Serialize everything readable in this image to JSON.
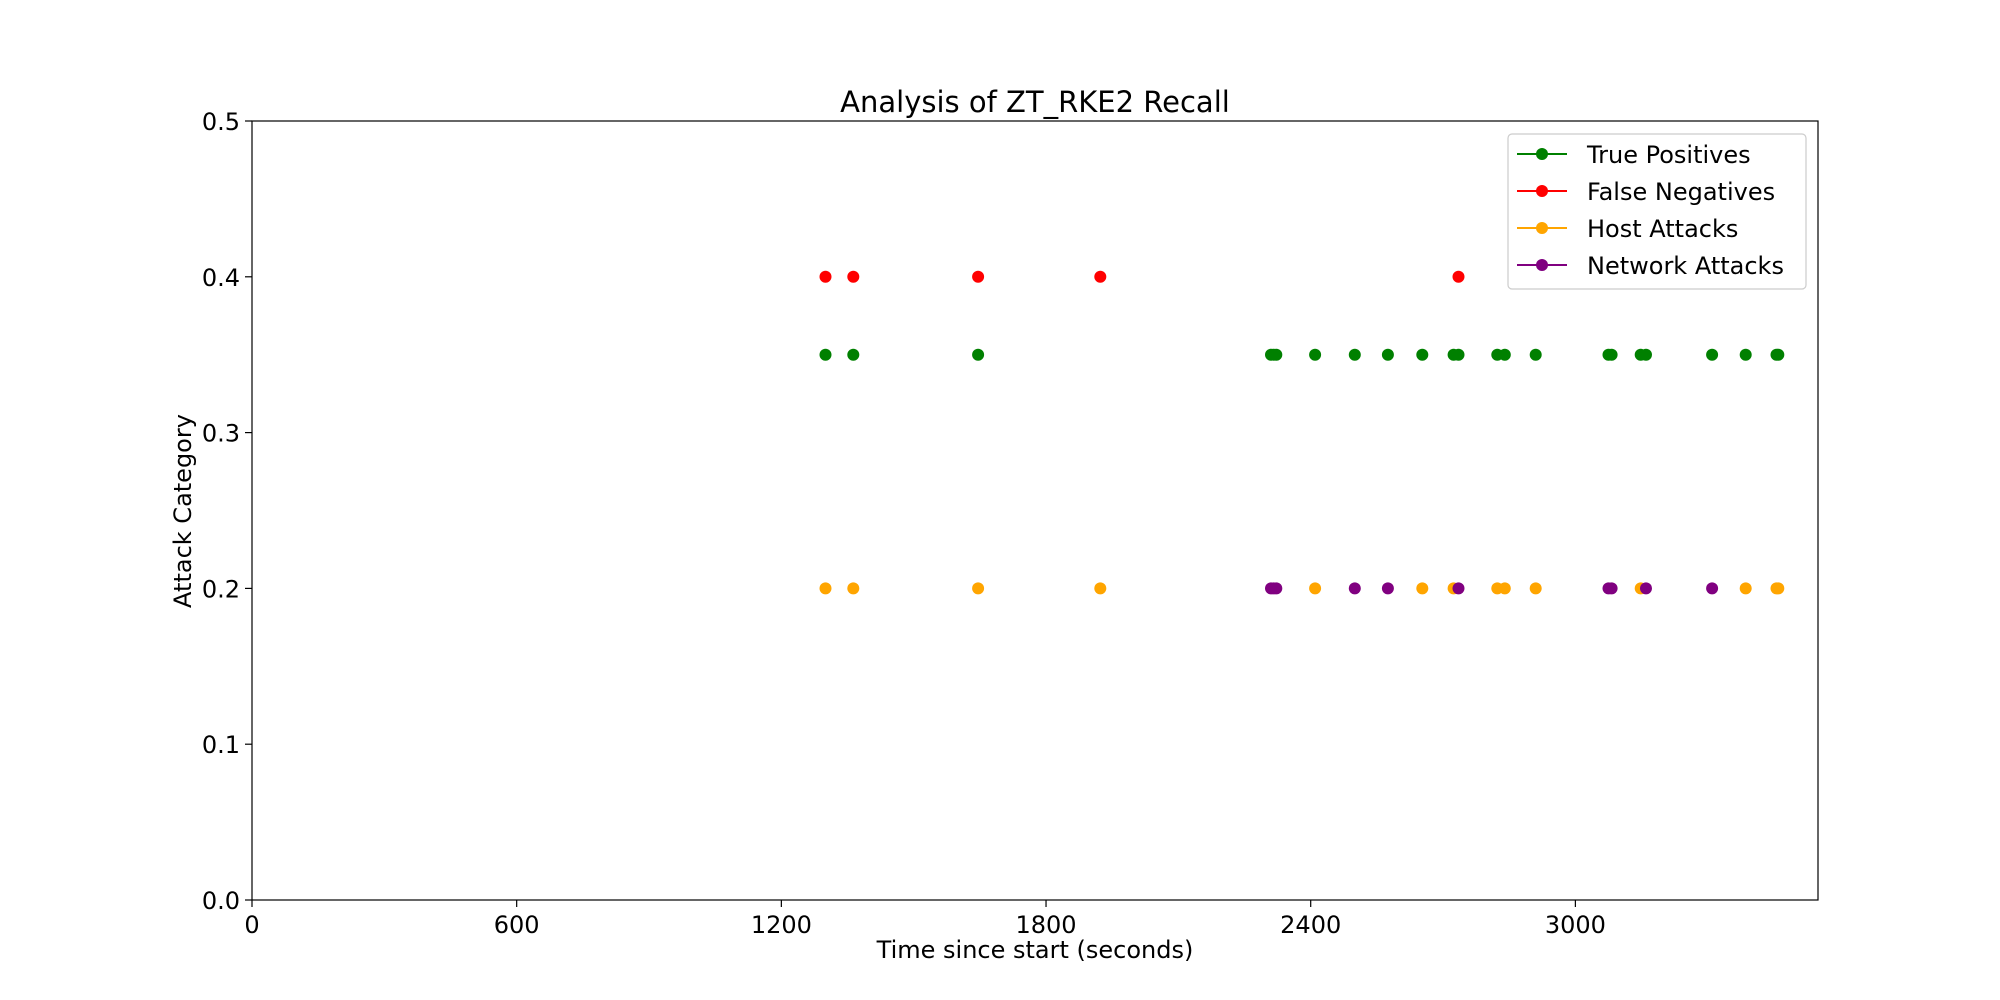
{
  "chart_data": {
    "type": "scatter",
    "title": "Analysis of ZT_RKE2 Recall",
    "xlabel": "Time since start (seconds)",
    "ylabel": "Attack Category",
    "xlim": [
      0,
      3550
    ],
    "ylim": [
      0,
      0.5
    ],
    "xticks": [
      0,
      600,
      1200,
      1800,
      2400,
      3000
    ],
    "xtick_labels": [
      "0",
      "600",
      "1200",
      "1800",
      "2400",
      "3000"
    ],
    "yticks": [
      0.0,
      0.1,
      0.2,
      0.3,
      0.4,
      0.5
    ],
    "ytick_labels": [
      "0.0",
      "0.1",
      "0.2",
      "0.3",
      "0.4",
      "0.5"
    ],
    "grid": false,
    "legend_position": "top-right",
    "series": [
      {
        "name": "True Positives",
        "color": "#008000",
        "x": [
          1300,
          1363,
          1646,
          2310,
          2316,
          2322,
          2410,
          2500,
          2575,
          2653,
          2724,
          2735,
          2823,
          2840,
          2910,
          3075,
          3082,
          3148,
          3160,
          3310,
          3386,
          3456,
          3460
        ],
        "y": [
          0.35,
          0.35,
          0.35,
          0.35,
          0.35,
          0.35,
          0.35,
          0.35,
          0.35,
          0.35,
          0.35,
          0.35,
          0.35,
          0.35,
          0.35,
          0.35,
          0.35,
          0.35,
          0.35,
          0.35,
          0.35,
          0.35,
          0.35
        ]
      },
      {
        "name": "False Negatives",
        "color": "#ff0000",
        "x": [
          1300,
          1363,
          1646,
          1923,
          2735
        ],
        "y": [
          0.4,
          0.4,
          0.4,
          0.4,
          0.4
        ]
      },
      {
        "name": "Host Attacks",
        "color": "#ffa500",
        "x": [
          1300,
          1363,
          1646,
          1923,
          2410,
          2653,
          2724,
          2823,
          2840,
          2910,
          3148,
          3386,
          3456,
          3460
        ],
        "y": [
          0.2,
          0.2,
          0.2,
          0.2,
          0.2,
          0.2,
          0.2,
          0.2,
          0.2,
          0.2,
          0.2,
          0.2,
          0.2,
          0.2
        ]
      },
      {
        "name": "Network Attacks",
        "color": "#800080",
        "x": [
          2310,
          2316,
          2322,
          2500,
          2575,
          2735,
          3075,
          3082,
          3160,
          3310
        ],
        "y": [
          0.2,
          0.2,
          0.2,
          0.2,
          0.2,
          0.2,
          0.2,
          0.2,
          0.2,
          0.2
        ]
      }
    ]
  }
}
